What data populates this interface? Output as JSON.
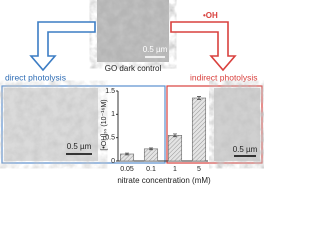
{
  "top_image": {
    "caption": "GO dark control",
    "scale": "0.5 µm"
  },
  "left_panel": {
    "label": "direct photolysis",
    "scale": "0.5 µm"
  },
  "right_panel": {
    "label": "indirect photolysis",
    "radical": "•OH",
    "scale": "0.5 µm"
  },
  "chart_data": {
    "type": "bar",
    "y_label": "[•OH]ₛₛ (10⁻¹⁶M)",
    "x_label": "nitrate concentration (mM)",
    "categories": [
      "0.05",
      "0.1",
      "1",
      "5"
    ],
    "values": [
      0.15,
      0.26,
      0.55,
      1.35
    ],
    "errors": [
      0.02,
      0.02,
      0.03,
      0.03
    ],
    "color": "#cfcfcf",
    "ylim": [
      0,
      1.5
    ],
    "yticks": [
      0,
      0.5,
      1,
      1.5
    ]
  }
}
